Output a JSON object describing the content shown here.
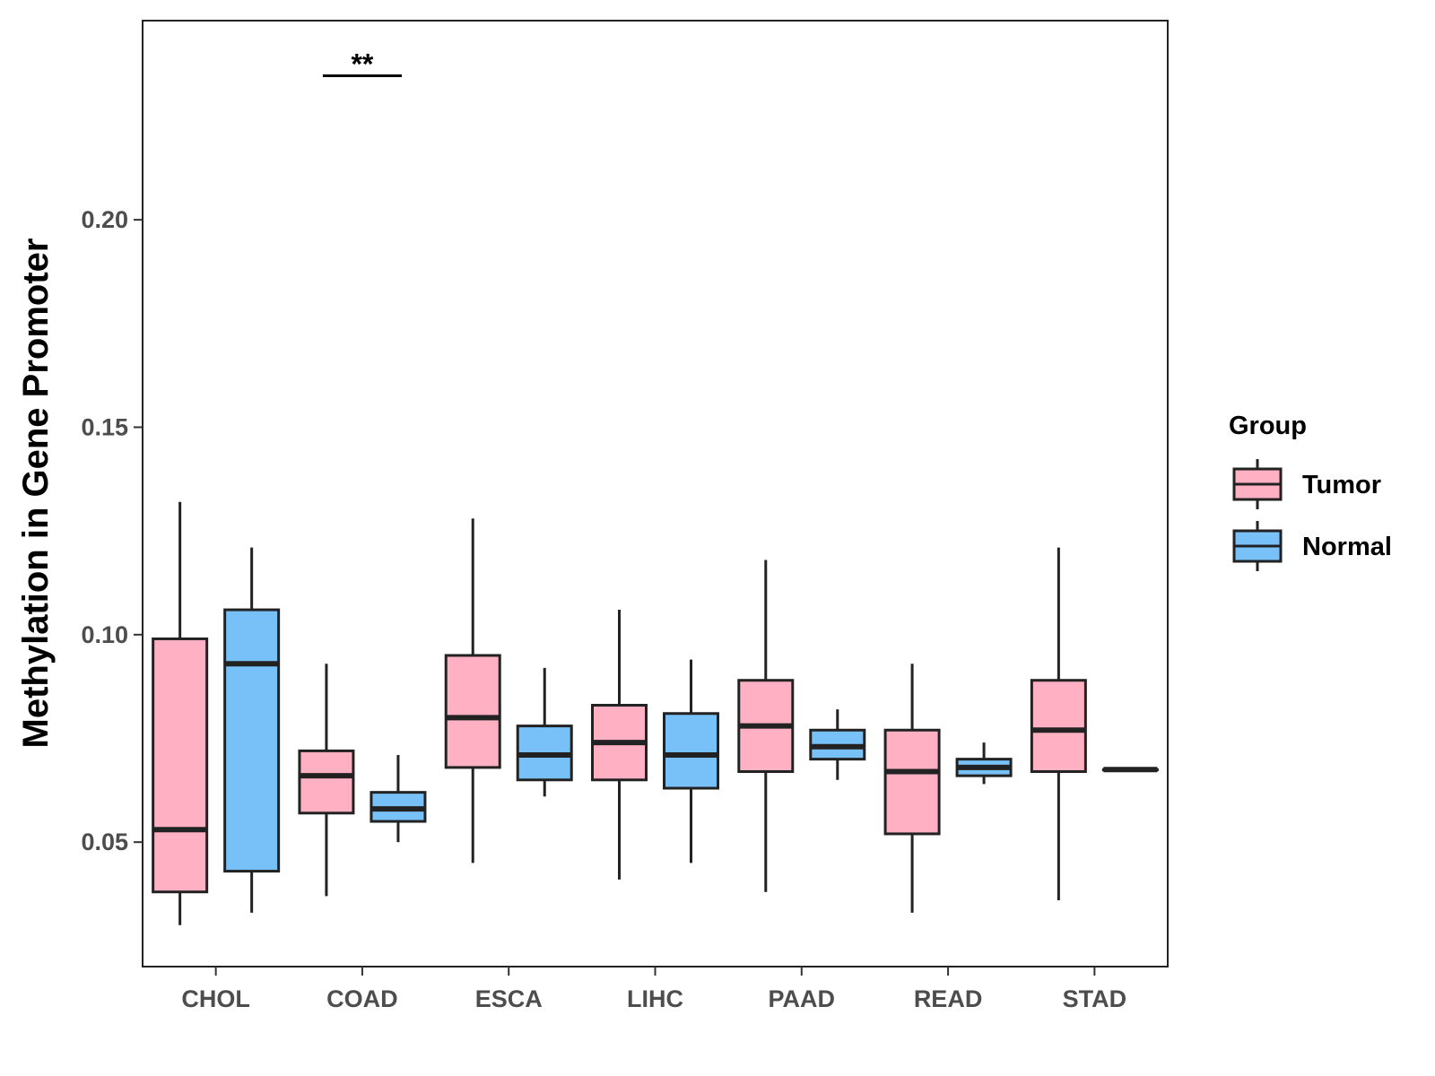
{
  "chart_data": {
    "type": "boxplot",
    "title": "",
    "xlabel": "",
    "ylabel": "Methylation in Gene Promoter",
    "ylim": [
      0.02,
      0.248
    ],
    "yticks": [
      0.05,
      0.1,
      0.15,
      0.2
    ],
    "ytick_labels": [
      "0.05",
      "0.10",
      "0.15",
      "0.20"
    ],
    "grid": false,
    "categories": [
      "CHOL",
      "COAD",
      "ESCA",
      "LIHC",
      "PAAD",
      "READ",
      "STAD"
    ],
    "legend": {
      "title": "Group",
      "position": "right",
      "entries": [
        "Tumor",
        "Normal"
      ]
    },
    "colors": {
      "Tumor": "#FFB0C2",
      "Normal": "#78C0F8",
      "outline": "#222222"
    },
    "series": [
      {
        "name": "Tumor",
        "boxes": [
          {
            "category": "CHOL",
            "min": 0.03,
            "q1": 0.038,
            "median": 0.053,
            "q3": 0.099,
            "max": 0.132
          },
          {
            "category": "COAD",
            "min": 0.037,
            "q1": 0.057,
            "median": 0.066,
            "q3": 0.072,
            "max": 0.093
          },
          {
            "category": "ESCA",
            "min": 0.045,
            "q1": 0.068,
            "median": 0.08,
            "q3": 0.095,
            "max": 0.128
          },
          {
            "category": "LIHC",
            "min": 0.041,
            "q1": 0.065,
            "median": 0.074,
            "q3": 0.083,
            "max": 0.106
          },
          {
            "category": "PAAD",
            "min": 0.038,
            "q1": 0.067,
            "median": 0.078,
            "q3": 0.089,
            "max": 0.118
          },
          {
            "category": "READ",
            "min": 0.033,
            "q1": 0.052,
            "median": 0.067,
            "q3": 0.077,
            "max": 0.093
          },
          {
            "category": "STAD",
            "min": 0.036,
            "q1": 0.067,
            "median": 0.077,
            "q3": 0.089,
            "max": 0.121
          }
        ]
      },
      {
        "name": "Normal",
        "boxes": [
          {
            "category": "CHOL",
            "min": 0.033,
            "q1": 0.043,
            "median": 0.093,
            "q3": 0.106,
            "max": 0.121
          },
          {
            "category": "COAD",
            "min": 0.05,
            "q1": 0.055,
            "median": 0.058,
            "q3": 0.062,
            "max": 0.071
          },
          {
            "category": "ESCA",
            "min": 0.061,
            "q1": 0.065,
            "median": 0.071,
            "q3": 0.078,
            "max": 0.092
          },
          {
            "category": "LIHC",
            "min": 0.045,
            "q1": 0.063,
            "median": 0.071,
            "q3": 0.081,
            "max": 0.094
          },
          {
            "category": "PAAD",
            "min": 0.065,
            "q1": 0.07,
            "median": 0.073,
            "q3": 0.077,
            "max": 0.082
          },
          {
            "category": "READ",
            "min": 0.064,
            "q1": 0.066,
            "median": 0.068,
            "q3": 0.07,
            "max": 0.074
          },
          {
            "category": "STAD",
            "min": 0.0675,
            "q1": 0.0675,
            "median": 0.0675,
            "q3": 0.0675,
            "max": 0.0675
          }
        ]
      }
    ],
    "annotations": [
      {
        "category": "COAD",
        "label": "**",
        "y": 0.236
      }
    ]
  }
}
